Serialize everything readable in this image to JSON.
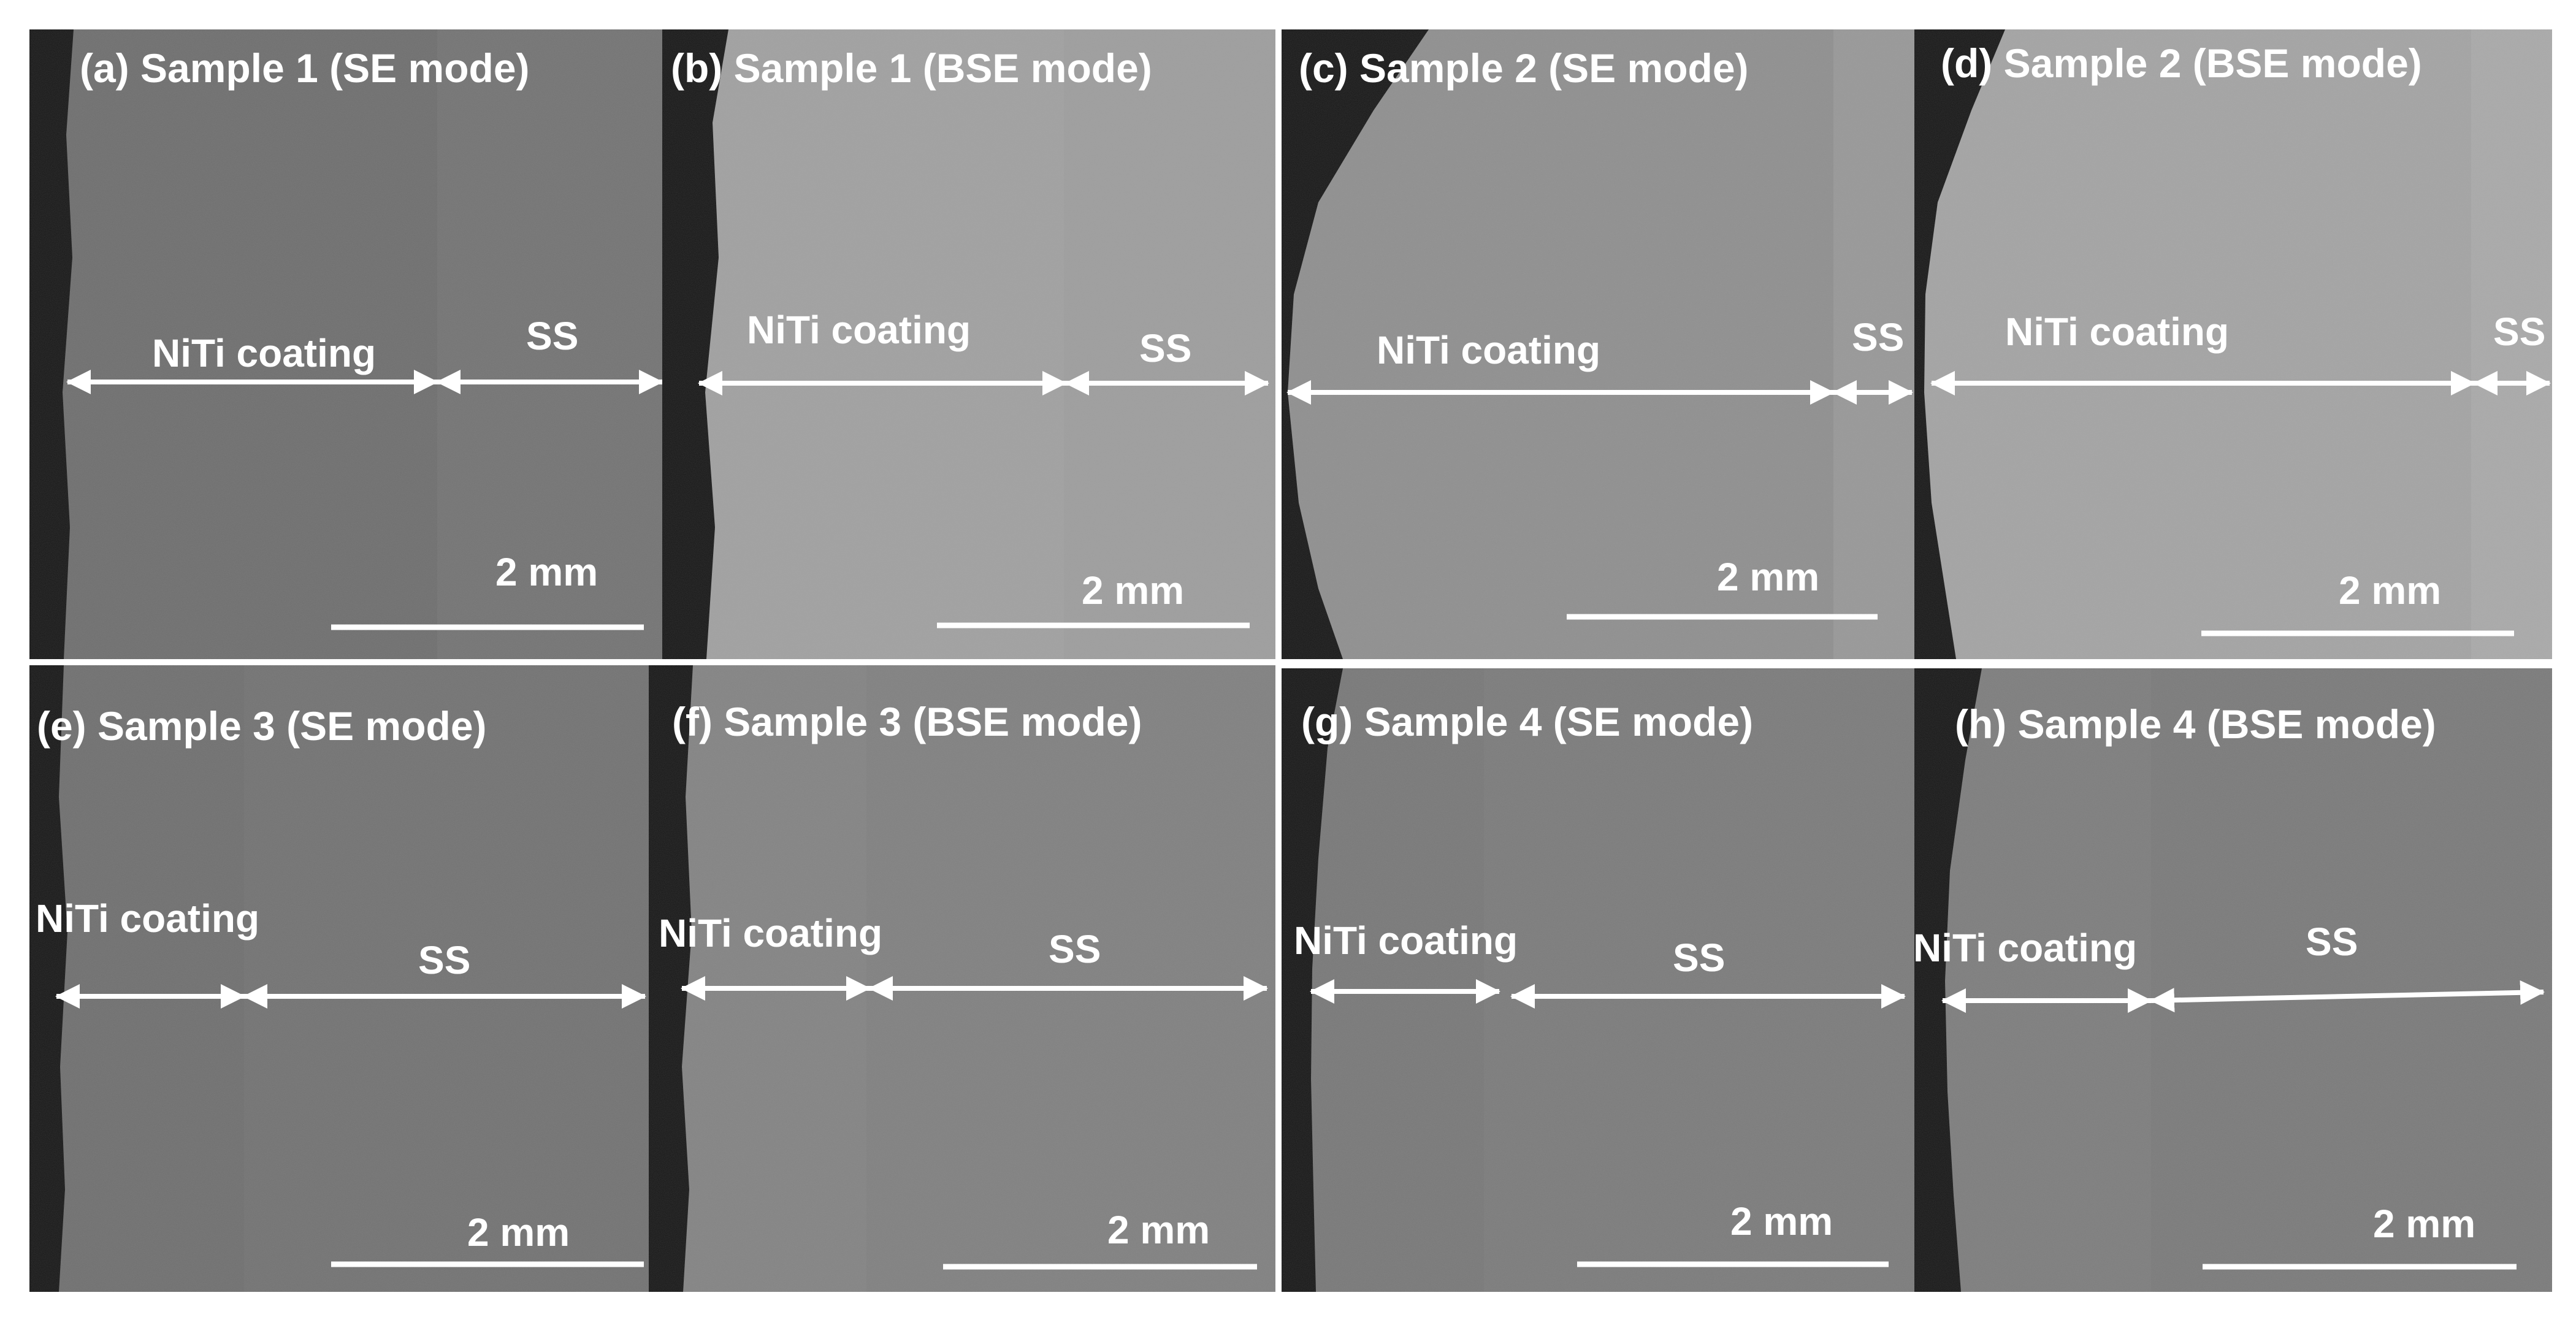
{
  "panels": [
    {
      "title": "(a) Sample 1 (SE mode)",
      "coating_label": "NiTi coating",
      "substrate_label": "SS",
      "scale_label": "2 mm"
    },
    {
      "title": "(b) Sample 1 (BSE mode)",
      "coating_label": "NiTi coating",
      "substrate_label": "SS",
      "scale_label": "2 mm"
    },
    {
      "title": "(c) Sample 2 (SE mode)",
      "coating_label": "NiTi coating",
      "substrate_label": "SS",
      "scale_label": "2 mm"
    },
    {
      "title": "(d) Sample 2 (BSE mode)",
      "coating_label": "NiTi coating",
      "substrate_label": "SS",
      "scale_label": "2 mm"
    },
    {
      "title": "(e) Sample 3 (SE mode)",
      "coating_label": "NiTi coating",
      "substrate_label": "SS",
      "scale_label": "2 mm"
    },
    {
      "title": "(f) Sample 3 (BSE mode)",
      "coating_label": "NiTi coating",
      "substrate_label": "SS",
      "scale_label": "2 mm"
    },
    {
      "title": "(g) Sample 4 (SE mode)",
      "coating_label": "NiTi coating",
      "substrate_label": "SS",
      "scale_label": "2 mm"
    },
    {
      "title": "(h) Sample 4 (BSE mode)",
      "coating_label": "NiTi coating",
      "substrate_label": "SS",
      "scale_label": "2 mm"
    }
  ],
  "colors": {
    "background": "#ffffff",
    "resin": "#151515",
    "annotation": "#ffffff",
    "panel_a": "#6d6d6d",
    "panel_b": "#a0a0a0",
    "panel_c": "#8e8e8e",
    "panel_d": "#a3a3a3",
    "panel_e": "#6e6e6e",
    "panel_f": "#828282",
    "panel_g": "#777777",
    "panel_h": "#7c7c7c"
  }
}
